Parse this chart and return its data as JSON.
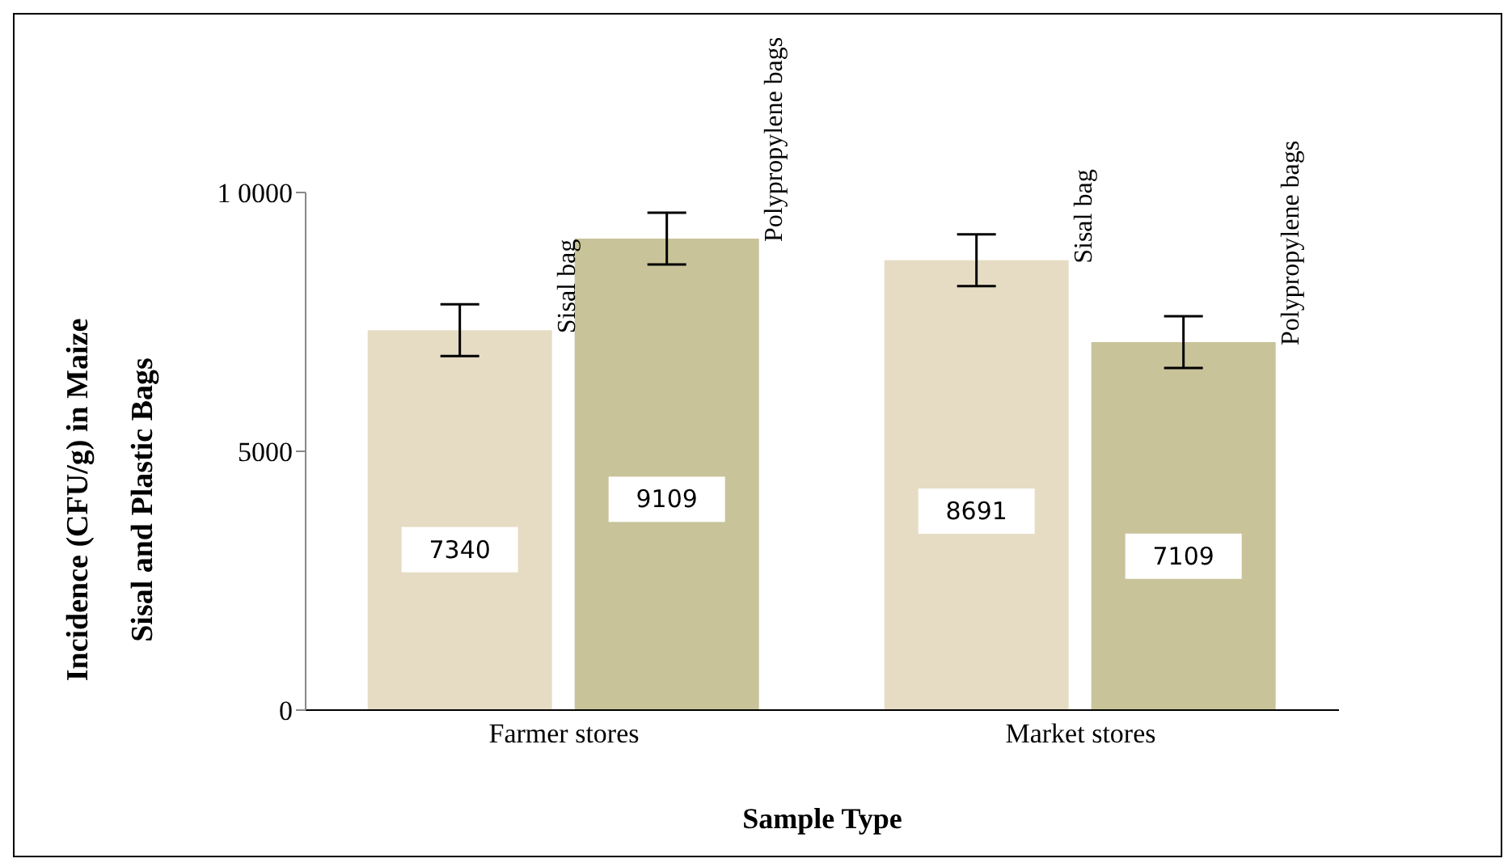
{
  "chart_data": {
    "type": "bar",
    "xlabel": "Sample Type",
    "ylabel": "Incidence (CFU/g) in Maize\nSisal and Plastic Bags",
    "categories": [
      "Farmer stores",
      "Market stores"
    ],
    "series": [
      {
        "name": "Sisal bag",
        "color": "#e6dcc4",
        "values": [
          7340,
          8691
        ],
        "errors": [
          500,
          500
        ]
      },
      {
        "name": "Polypropylene bags",
        "color": "#c9c39a",
        "values": [
          9109,
          7109
        ],
        "errors": [
          500,
          500
        ]
      }
    ],
    "ylim": [
      0,
      10000
    ],
    "yticks": [
      0,
      5000,
      {
        "value": 10000,
        "label": "1 0000"
      }
    ],
    "grid": false,
    "legend": false,
    "data_labels": true
  }
}
